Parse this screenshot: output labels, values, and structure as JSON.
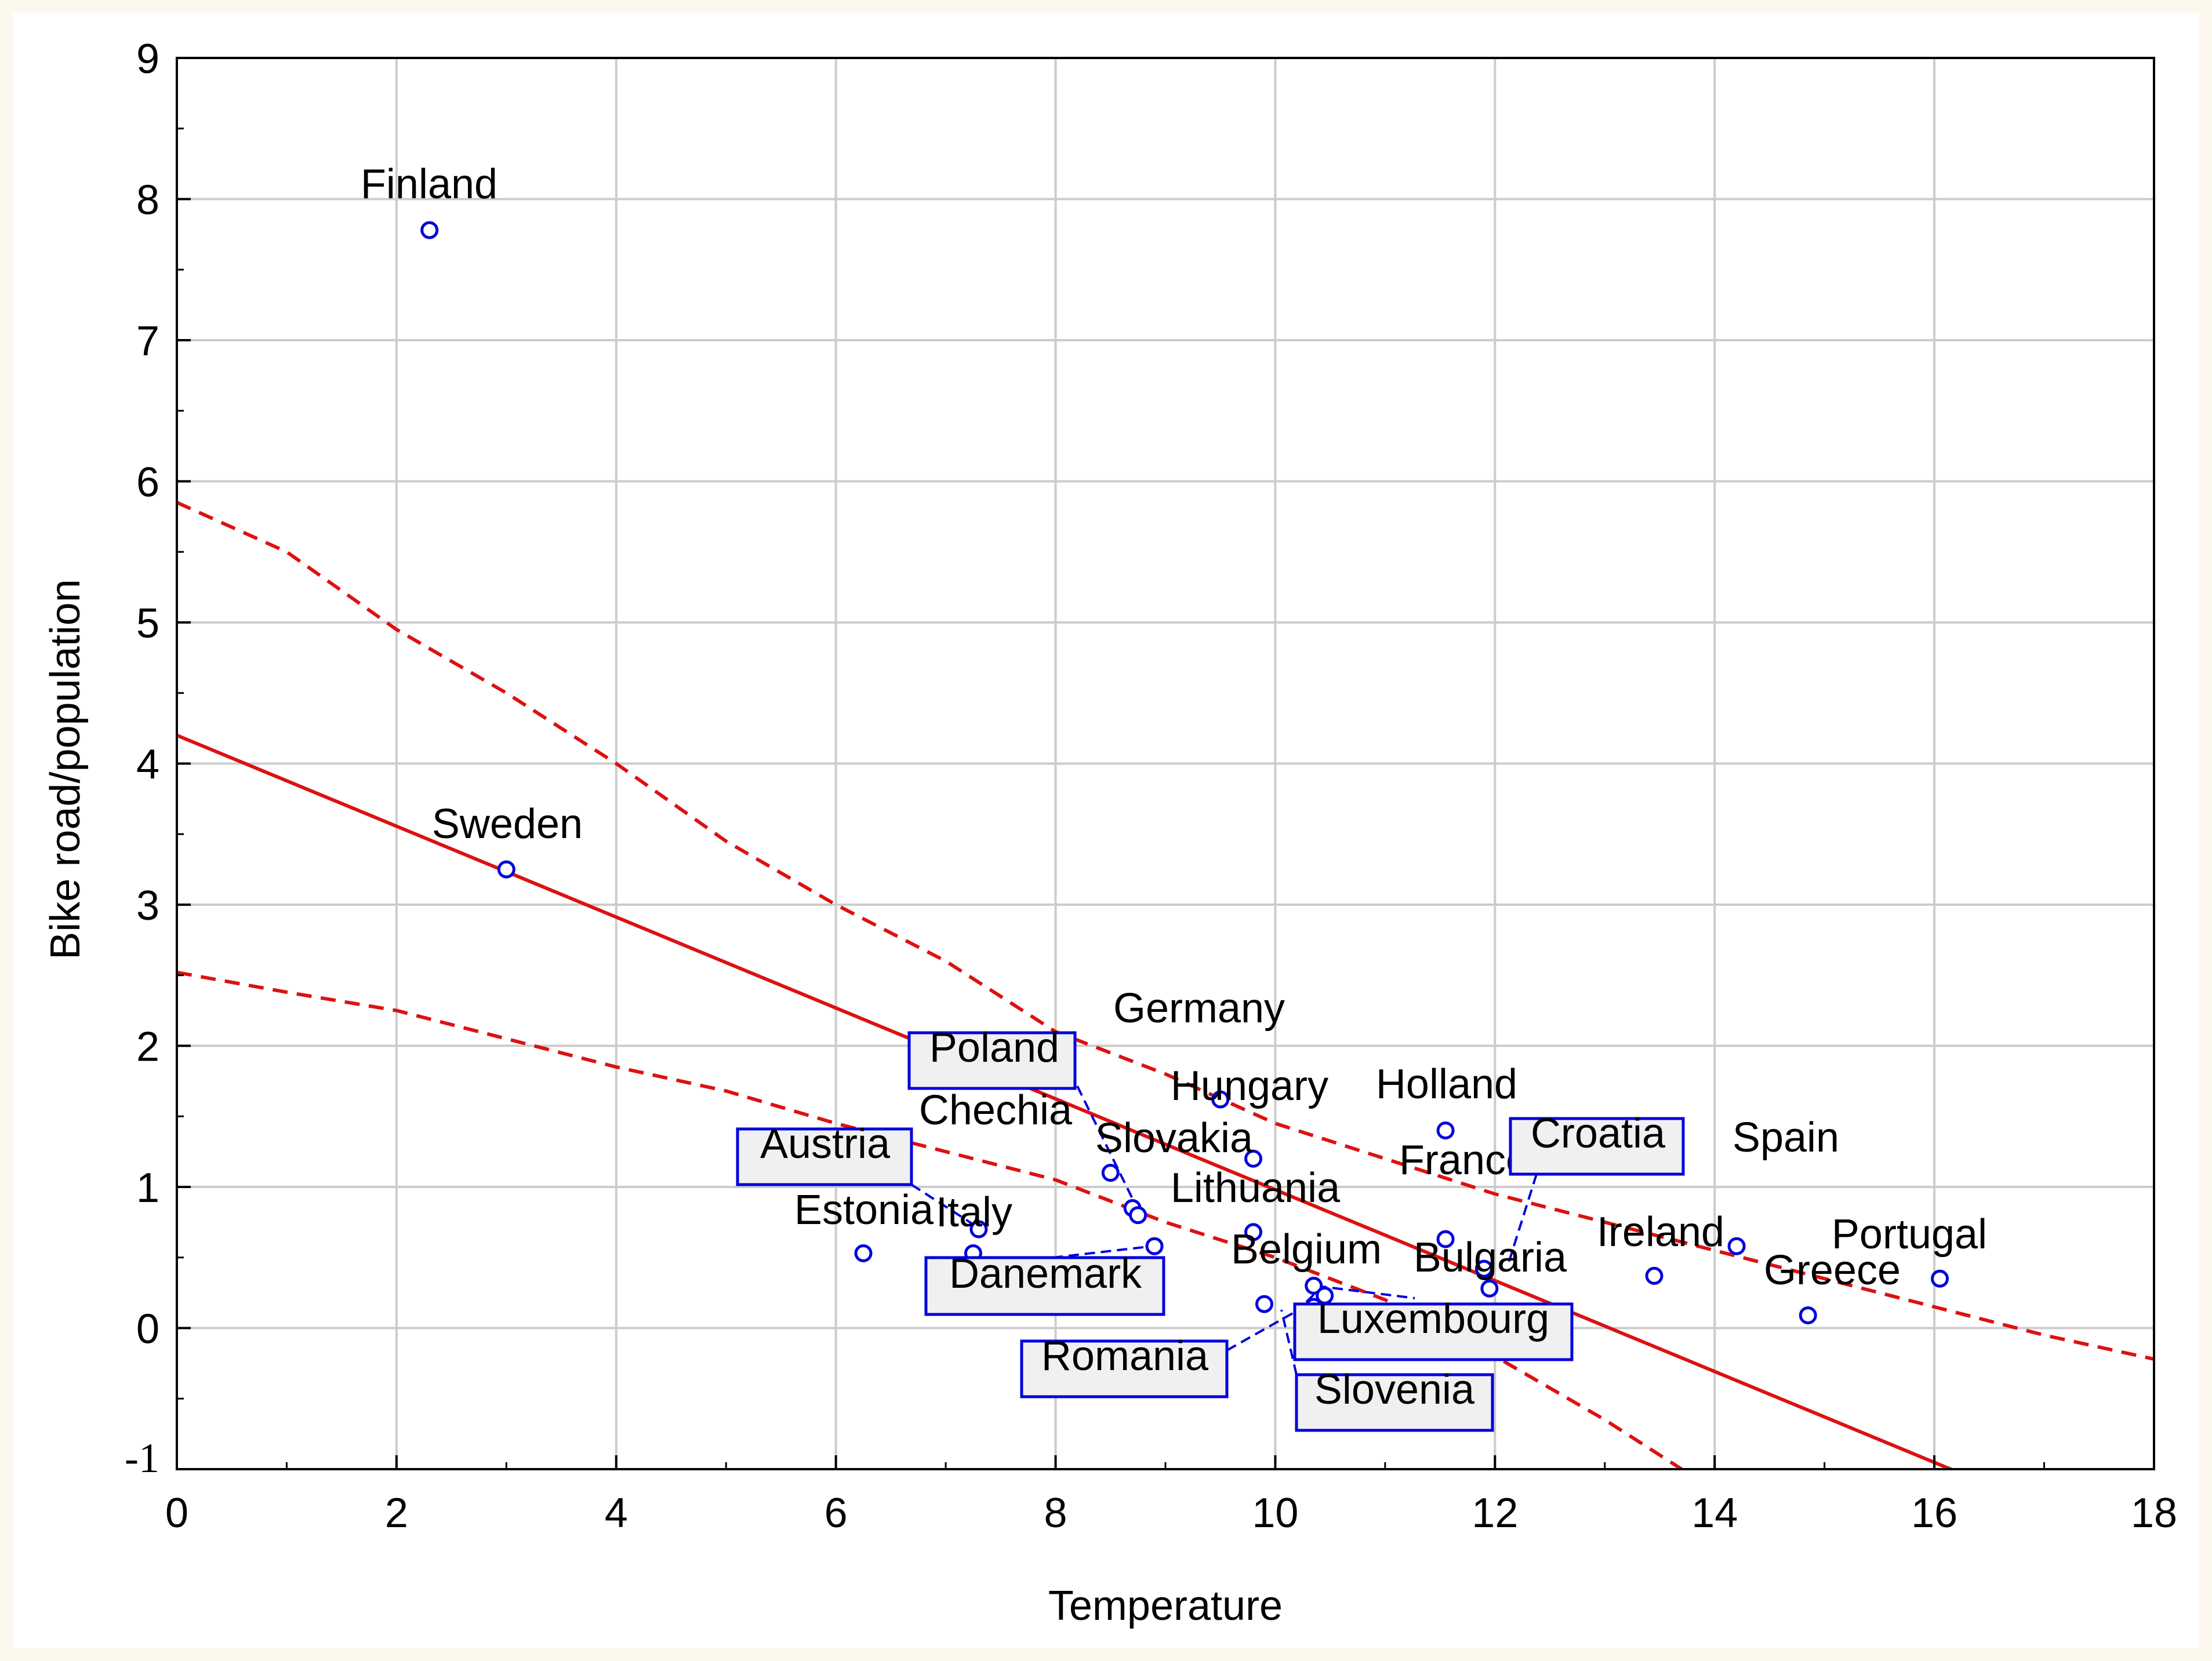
{
  "chart_data": {
    "type": "scatter",
    "title": "",
    "xlabel": "Temperature",
    "ylabel": "Bike road/population",
    "xlim": [
      0,
      18
    ],
    "ylim": [
      -1,
      9
    ],
    "xticks": [
      "0",
      "2",
      "4",
      "6",
      "8",
      "10",
      "12",
      "14",
      "16",
      "18"
    ],
    "yticks": [
      "-1",
      "0",
      "1",
      "2",
      "3",
      "4",
      "5",
      "6",
      "7",
      "8",
      "9"
    ],
    "grid": true,
    "points": [
      {
        "label": "Finland",
        "x": 2.3,
        "y": 7.78
      },
      {
        "label": "Sweden",
        "x": 3.0,
        "y": 3.25
      },
      {
        "label": "Germany",
        "x": 9.5,
        "y": 1.62
      },
      {
        "label": "Hungary",
        "x": 9.8,
        "y": 1.2
      },
      {
        "label": "Holland",
        "x": 11.55,
        "y": 1.4
      },
      {
        "label": "Chechia",
        "x": 8.5,
        "y": 1.1
      },
      {
        "label": "Slovakia",
        "x": 8.7,
        "y": 0.85
      },
      {
        "label": "Poland",
        "x": 8.75,
        "y": 0.8
      },
      {
        "label": "Lithuania",
        "x": 9.8,
        "y": 0.68
      },
      {
        "label": "Estonia",
        "x": 6.25,
        "y": 0.53
      },
      {
        "label": "Italy",
        "x": 7.25,
        "y": 0.53
      },
      {
        "label": "Austria",
        "x": 7.3,
        "y": 0.7
      },
      {
        "label": "Danemark",
        "x": 8.9,
        "y": 0.58
      },
      {
        "label": "France",
        "x": 11.55,
        "y": 0.63
      },
      {
        "label": "Croatia",
        "x": 11.9,
        "y": 0.42
      },
      {
        "label": "Bulgaria",
        "x": 11.95,
        "y": 0.28
      },
      {
        "label": "Belgium",
        "x": 10.35,
        "y": 0.3
      },
      {
        "label": "Luxembourg",
        "x": 10.45,
        "y": 0.23
      },
      {
        "label": "Slovenia",
        "x": 10.35,
        "y": 0.15
      },
      {
        "label": "Romania",
        "x": 9.9,
        "y": 0.17
      },
      {
        "label": "Ireland",
        "x": 13.45,
        "y": 0.37
      },
      {
        "label": "Spain",
        "x": 14.2,
        "y": 0.58
      },
      {
        "label": "Greece",
        "x": 14.85,
        "y": 0.09
      },
      {
        "label": "Portugal",
        "x": 16.05,
        "y": 0.35
      }
    ],
    "regression": {
      "intercept": 4.2,
      "slope": -0.322
    },
    "confidence_band": {
      "upper": [
        [
          0,
          5.85
        ],
        [
          1,
          5.5
        ],
        [
          2,
          4.95
        ],
        [
          3,
          4.5
        ],
        [
          4,
          4.0
        ],
        [
          5,
          3.45
        ],
        [
          6,
          3.0
        ],
        [
          7,
          2.6
        ],
        [
          8,
          2.1
        ],
        [
          9,
          1.8
        ],
        [
          10,
          1.45
        ],
        [
          11,
          1.2
        ],
        [
          12,
          0.95
        ],
        [
          13,
          0.75
        ],
        [
          14,
          0.55
        ],
        [
          15,
          0.35
        ],
        [
          16,
          0.15
        ],
        [
          17,
          -0.05
        ],
        [
          18,
          -0.22
        ]
      ],
      "lower": [
        [
          0,
          2.52
        ],
        [
          1,
          2.38
        ],
        [
          2,
          2.25
        ],
        [
          3,
          2.05
        ],
        [
          4,
          1.85
        ],
        [
          5,
          1.68
        ],
        [
          6,
          1.45
        ],
        [
          7,
          1.25
        ],
        [
          8,
          1.05
        ],
        [
          9,
          0.75
        ],
        [
          10,
          0.5
        ],
        [
          11,
          0.2
        ],
        [
          12,
          -0.2
        ],
        [
          13,
          -0.65
        ],
        [
          13.7,
          -1.0
        ]
      ]
    },
    "series_colors": {
      "points": "#0000dd",
      "fit": "#dd1111",
      "band": "#dd1111",
      "grid": "#cccccc",
      "label_box": "#f0f0f0"
    }
  }
}
